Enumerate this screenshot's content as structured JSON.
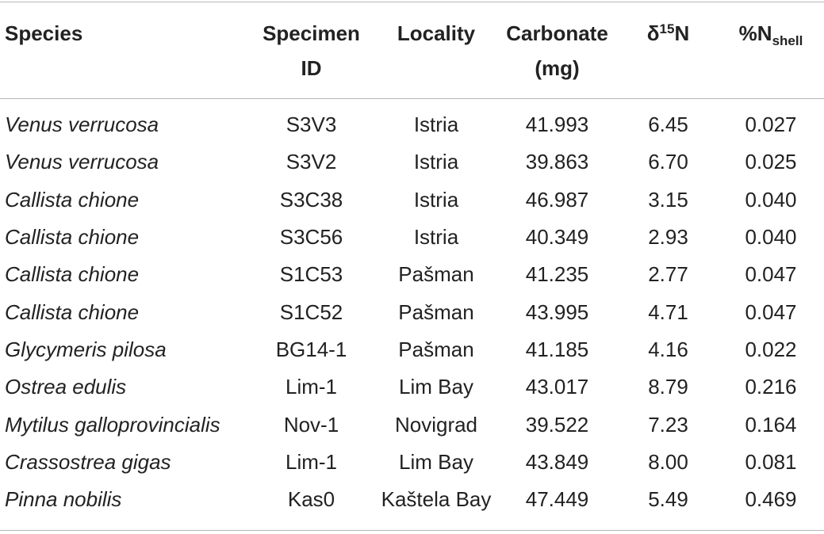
{
  "table": {
    "headers": {
      "species": "Species",
      "specimen_id_line1": "Specimen",
      "specimen_id_line2": "ID",
      "locality": "Locality",
      "carbonate_line1": "Carbonate",
      "carbonate_line2": "(mg)",
      "d15n_prefix": "δ",
      "d15n_sup": "15",
      "d15n_suffix": "N",
      "nshell_prefix": "%N",
      "nshell_sub": "shell"
    },
    "rows": [
      {
        "species": "Venus verrucosa",
        "specimen_id": "S3V3",
        "locality": "Istria",
        "carbonate": "41.993",
        "d15n": "6.45",
        "nshell": "0.027"
      },
      {
        "species": "Venus verrucosa",
        "specimen_id": "S3V2",
        "locality": "Istria",
        "carbonate": "39.863",
        "d15n": "6.70",
        "nshell": "0.025"
      },
      {
        "species": "Callista chione",
        "specimen_id": "S3C38",
        "locality": "Istria",
        "carbonate": "46.987",
        "d15n": "3.15",
        "nshell": "0.040"
      },
      {
        "species": "Callista chione",
        "specimen_id": "S3C56",
        "locality": "Istria",
        "carbonate": "40.349",
        "d15n": "2.93",
        "nshell": "0.040"
      },
      {
        "species": "Callista chione",
        "specimen_id": "S1C53",
        "locality": "Pašman",
        "carbonate": "41.235",
        "d15n": "2.77",
        "nshell": "0.047"
      },
      {
        "species": "Callista chione",
        "specimen_id": "S1C52",
        "locality": "Pašman",
        "carbonate": "43.995",
        "d15n": "4.71",
        "nshell": "0.047"
      },
      {
        "species": "Glycymeris pilosa",
        "specimen_id": "BG14-1",
        "locality": "Pašman",
        "carbonate": "41.185",
        "d15n": "4.16",
        "nshell": "0.022"
      },
      {
        "species": "Ostrea edulis",
        "specimen_id": "Lim-1",
        "locality": "Lim Bay",
        "carbonate": "43.017",
        "d15n": "8.79",
        "nshell": "0.216"
      },
      {
        "species": "Mytilus galloprovincialis",
        "specimen_id": "Nov-1",
        "locality": "Novigrad",
        "carbonate": "39.522",
        "d15n": "7.23",
        "nshell": "0.164"
      },
      {
        "species": "Crassostrea gigas",
        "specimen_id": "Lim-1",
        "locality": "Lim Bay",
        "carbonate": "43.849",
        "d15n": "8.00",
        "nshell": "0.081"
      },
      {
        "species": "Pinna nobilis",
        "specimen_id": "Kas0",
        "locality": "Kaštela Bay",
        "carbonate": "47.449",
        "d15n": "5.49",
        "nshell": "0.469"
      }
    ]
  }
}
